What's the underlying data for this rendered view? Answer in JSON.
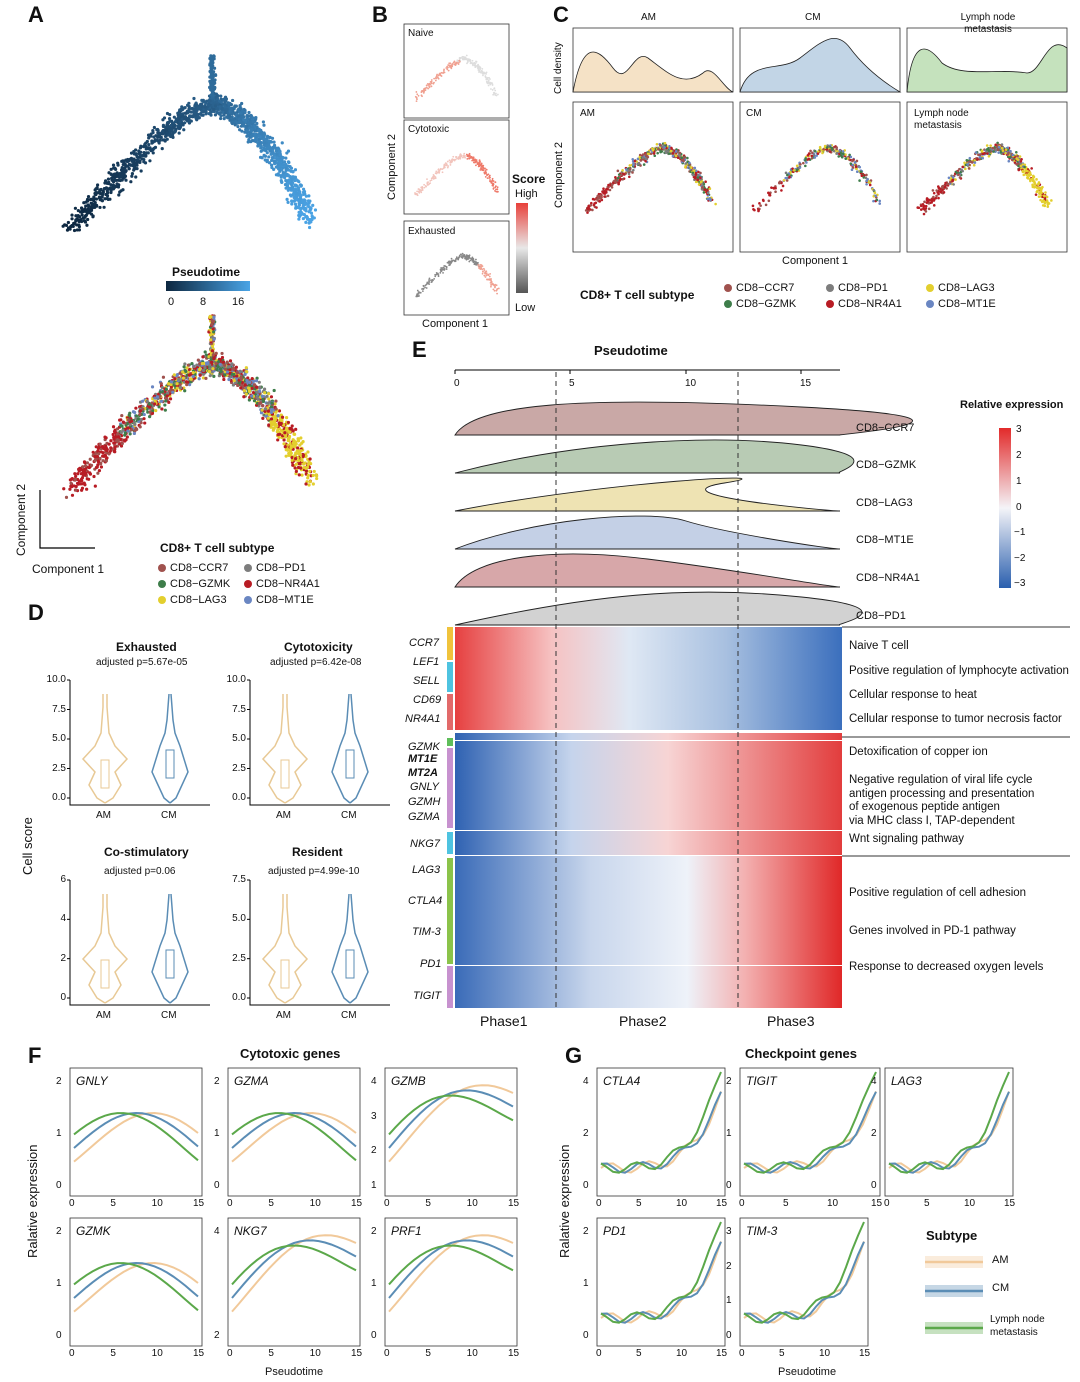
{
  "panels": {
    "A": "A",
    "B": "B",
    "C": "C",
    "D": "D",
    "E": "E",
    "F": "F",
    "G": "G"
  },
  "panel_a": {
    "pseudotime_title": "Pseudotime",
    "pseudotime_ticks": [
      "0",
      "8",
      "16"
    ],
    "axis_y": "Component 2",
    "axis_x": "Component 1"
  },
  "subtype_legend": {
    "title": "CD8+ T cell subtype",
    "items": [
      {
        "label": "CD8−CCR7",
        "color": "#a0524e"
      },
      {
        "label": "CD8−PD1",
        "color": "#7d7d7d"
      },
      {
        "label": "CD8−GZMK",
        "color": "#3e7d4a"
      },
      {
        "label": "CD8−NR4A1",
        "color": "#b81c24"
      },
      {
        "label": "CD8−LAG3",
        "color": "#e3cf2e"
      },
      {
        "label": "CD8−MT1E",
        "color": "#6a86c2"
      }
    ]
  },
  "panel_b": {
    "labels": [
      "Naive",
      "Cytotoxic",
      "Exhausted"
    ],
    "axis_y": "Component 2",
    "axis_x": "Component 1",
    "score_title": "Score",
    "score_high": "High",
    "score_low": "Low"
  },
  "panel_c": {
    "density_titles": [
      "AM",
      "CM",
      "Lymph node metastasis"
    ],
    "density_ylabel": "Cell density",
    "scatter_labels": [
      "AM",
      "CM",
      "Lymph node metastasis"
    ],
    "axis_y": "Component 2",
    "axis_x": "Component 1"
  },
  "panel_d": {
    "ylabel": "Cell score",
    "groups": [
      "AM",
      "CM"
    ],
    "colors": {
      "AM": "#e8c995",
      "CM": "#5b8db5"
    },
    "plots": [
      {
        "title": "Exhausted",
        "p": "adjusted p=5.67e-05",
        "yticks": [
          "10.0",
          "7.5",
          "5.0",
          "2.5",
          "0.0"
        ]
      },
      {
        "title": "Cytotoxicity",
        "p": "adjusted p=6.42e-08",
        "yticks": [
          "10.0",
          "7.5",
          "5.0",
          "2.5",
          "0.0"
        ]
      },
      {
        "title": "Co-stimulatory",
        "p": "adjusted p=0.06",
        "yticks": [
          "6",
          "4",
          "2",
          "0"
        ]
      },
      {
        "title": "Resident",
        "p": "adjusted p=4.99e-10",
        "yticks": [
          "7.5",
          "5.0",
          "2.5",
          "0.0"
        ]
      }
    ]
  },
  "panel_e": {
    "title": "Pseudotime",
    "ticks": [
      "0",
      "5",
      "10",
      "15"
    ],
    "ridges": [
      {
        "label": "CD8−CCR7",
        "color": "#c9a8a6"
      },
      {
        "label": "CD8−GZMK",
        "color": "#b8cbb4"
      },
      {
        "label": "CD8−LAG3",
        "color": "#eee3b3"
      },
      {
        "label": "CD8−MT1E",
        "color": "#c4d0e6"
      },
      {
        "label": "CD8−NR4A1",
        "color": "#d7a7a9"
      },
      {
        "label": "CD8−PD1",
        "color": "#d2d2d2"
      }
    ],
    "scale_title": "Relative expression",
    "scale_ticks": [
      "3",
      "2",
      "1",
      "0",
      "−1",
      "−2",
      "−3"
    ],
    "genes": [
      "CCR7",
      "LEF1",
      "SELL",
      "CD69",
      "NR4A1",
      "GZMK",
      "MT1E",
      "MT2A",
      "GNLY",
      "GZMH",
      "GZMA",
      "NKG7",
      "LAG3",
      "CTLA4",
      "TIM-3",
      "PD1",
      "TIGIT"
    ],
    "terms": [
      "Naive T cell",
      "Positive regulation of lymphocyte activation",
      "Cellular response to heat",
      "Cellular response to tumor necrosis factor",
      "Detoxification of copper ion",
      "Negative regulation of viral life cycle",
      "antigen processing and presentation",
      "of exogenous peptide antigen",
      "via MHC class I, TAP-dependent",
      "Wnt signaling pathway",
      "Positive regulation of cell adhesion",
      "Genes involved in PD-1 pathway",
      "Response to decreased oxygen levels"
    ],
    "phases": [
      "Phase1",
      "Phase2",
      "Phase3"
    ]
  },
  "panel_f": {
    "title": "Cytotoxic genes",
    "ylabel": "Ralative expression",
    "xlabel": "Pseudotime",
    "xticks": [
      "0",
      "5",
      "10",
      "15"
    ],
    "plots": [
      {
        "gene": "GNLY",
        "yticks": [
          "2",
          "1",
          "0"
        ]
      },
      {
        "gene": "GZMA",
        "yticks": [
          "2",
          "1",
          "0"
        ]
      },
      {
        "gene": "GZMB",
        "yticks": [
          "4",
          "3",
          "2",
          "1"
        ]
      },
      {
        "gene": "GZMK",
        "yticks": [
          "2",
          "1",
          "0"
        ]
      },
      {
        "gene": "NKG7",
        "yticks": [
          "4",
          "2"
        ]
      },
      {
        "gene": "PRF1",
        "yticks": [
          "2",
          "1",
          "0"
        ]
      }
    ]
  },
  "panel_g": {
    "title": "Checkpoint genes",
    "ylabel": "Ralative expression",
    "xlabel": "Pseudotime",
    "xticks": [
      "0",
      "5",
      "10",
      "15"
    ],
    "plots": [
      {
        "gene": "CTLA4",
        "yticks": [
          "4",
          "2",
          "0"
        ]
      },
      {
        "gene": "TIGIT",
        "yticks": [
          "2",
          "1",
          "0"
        ]
      },
      {
        "gene": "LAG3",
        "yticks": [
          "4",
          "2",
          "0"
        ]
      },
      {
        "gene": "PD1",
        "yticks": [
          "2",
          "1",
          "0"
        ]
      },
      {
        "gene": "TIM-3",
        "yticks": [
          "3",
          "2",
          "1",
          "0"
        ]
      }
    ],
    "legend_title": "Subtype",
    "legend": [
      {
        "label": "AM",
        "color": "#f1c99a"
      },
      {
        "label": "CM",
        "color": "#5b8db5"
      },
      {
        "label": "Lymph node metastasis",
        "color": "#5ba84a"
      }
    ]
  }
}
